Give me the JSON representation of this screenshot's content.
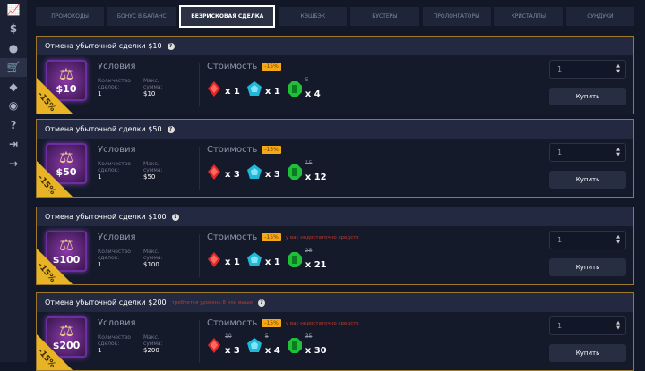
{
  "sidebar": {
    "items": [
      {
        "icon": "chart-icon",
        "glyph": "📈"
      },
      {
        "icon": "dollar-icon",
        "glyph": "$"
      },
      {
        "icon": "user-icon",
        "glyph": "●"
      },
      {
        "icon": "cart-icon",
        "glyph": "🛒",
        "active": true
      },
      {
        "icon": "diamond-icon",
        "glyph": "◆"
      },
      {
        "icon": "chat-notification-icon",
        "glyph": "◉"
      },
      {
        "icon": "help-icon",
        "glyph": "?"
      },
      {
        "icon": "logout-icon",
        "glyph": "⇥"
      },
      {
        "icon": "arrow-right-icon",
        "glyph": "→"
      }
    ]
  },
  "tabs": [
    {
      "label": "Промокоды"
    },
    {
      "label": "Бонус в баланс"
    },
    {
      "label": "Безрисковая сделка",
      "active": true
    },
    {
      "label": "Кэшбэк"
    },
    {
      "label": "Бустеры"
    },
    {
      "label": "Пролонгаторы"
    },
    {
      "label": "Кристаллы"
    },
    {
      "label": "Сундуки"
    }
  ],
  "colors": {
    "accent": "#f3a915",
    "border": "#a0782c",
    "ruby": "#e0282c",
    "sapphire": "#1fb8d8",
    "emerald": "#1fbf3a",
    "warning": "#c0392b"
  },
  "labels": {
    "conditions": "Условия",
    "deals_count": "Количество сделок:",
    "max_sum": "Макс. сумма:",
    "cost": "Стоимость",
    "buy": "Купить"
  },
  "cards": [
    {
      "title": "Отмена убыточной сделки $10",
      "requirement": "",
      "price": "$10",
      "ribbon": "-15%",
      "deals": "1",
      "max": "$10",
      "discount": "-15%",
      "warning": "",
      "gems": [
        {
          "qty": "x 1",
          "old": ""
        },
        {
          "qty": "x 1",
          "old": ""
        },
        {
          "qty": "x 4",
          "old": "5"
        }
      ],
      "quantity": "1"
    },
    {
      "title": "Отмена убыточной сделки $50",
      "requirement": "",
      "price": "$50",
      "ribbon": "-15%",
      "deals": "1",
      "max": "$50",
      "discount": "-15%",
      "warning": "",
      "gems": [
        {
          "qty": "x 3",
          "old": ""
        },
        {
          "qty": "x 3",
          "old": ""
        },
        {
          "qty": "x 12",
          "old": "15"
        }
      ],
      "quantity": "1"
    },
    {
      "title": "Отмена убыточной сделки $100",
      "requirement": "",
      "price": "$100",
      "ribbon": "-15%",
      "deals": "1",
      "max": "$100",
      "discount": "-15%",
      "warning": "у вас недостаточно средств",
      "gems": [
        {
          "qty": "x 1",
          "old": ""
        },
        {
          "qty": "x 1",
          "old": ""
        },
        {
          "qty": "x 21",
          "old": "25"
        }
      ],
      "quantity": "1"
    },
    {
      "title": "Отмена убыточной сделки $200",
      "requirement": "требуется уровень 8 или выше",
      "price": "$200",
      "ribbon": "-15%",
      "deals": "1",
      "max": "$200",
      "discount": "-15%",
      "warning": "у вас недостаточно средств",
      "gems": [
        {
          "qty": "x 3",
          "old": "10"
        },
        {
          "qty": "x 4",
          "old": "5"
        },
        {
          "qty": "x 30",
          "old": "35"
        }
      ],
      "quantity": "1"
    }
  ]
}
